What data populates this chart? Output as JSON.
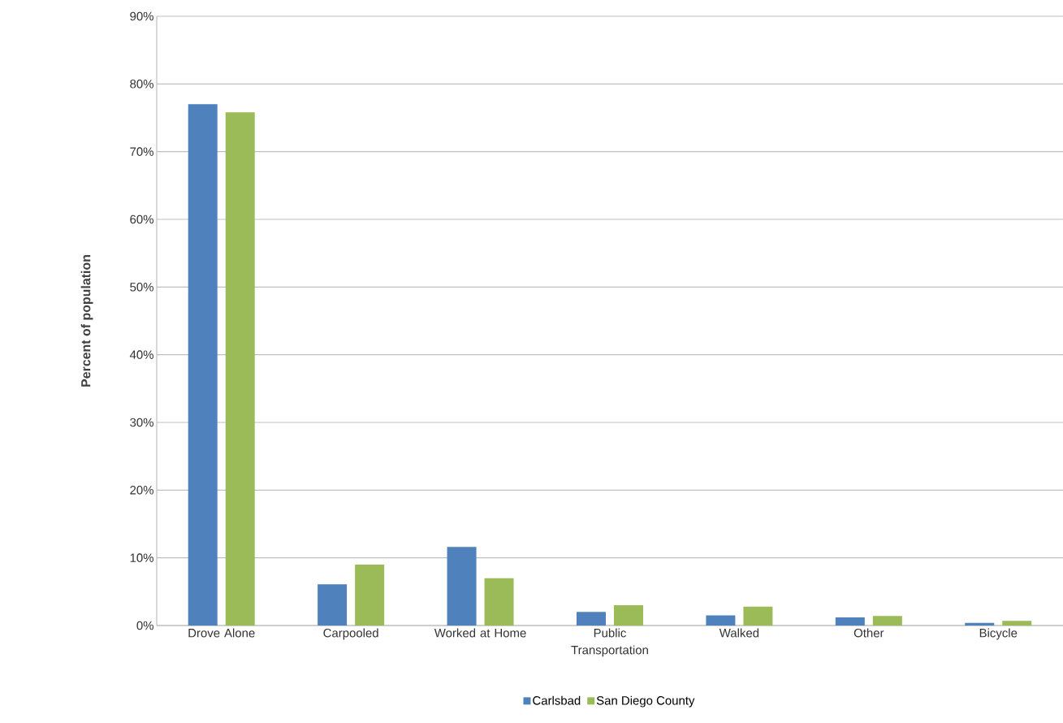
{
  "chart_data": {
    "type": "bar",
    "ylabel": "Percent of population",
    "categories": [
      "Drove Alone",
      "Carpooled",
      "Worked at Home",
      "Public Transportation",
      "Walked",
      "Other",
      "Bicycle"
    ],
    "series": [
      {
        "name": "Carlsbad",
        "color": "#4f81bd",
        "values": [
          77.0,
          6.1,
          11.6,
          2.0,
          1.5,
          1.2,
          0.4
        ]
      },
      {
        "name": "San Diego County",
        "color": "#9bbb59",
        "values": [
          75.8,
          9.0,
          7.0,
          3.0,
          2.8,
          1.4,
          0.7
        ]
      }
    ],
    "ylim": [
      0,
      90
    ],
    "yticks": [
      {
        "value": 0,
        "label": "0%"
      },
      {
        "value": 10,
        "label": "10%"
      },
      {
        "value": 20,
        "label": "20%"
      },
      {
        "value": 30,
        "label": "30%"
      },
      {
        "value": 40,
        "label": "40%"
      },
      {
        "value": 50,
        "label": "50%"
      },
      {
        "value": 60,
        "label": "60%"
      },
      {
        "value": 70,
        "label": "70%"
      },
      {
        "value": 80,
        "label": "80%"
      },
      {
        "value": 90,
        "label": "90%"
      }
    ],
    "grid": "y",
    "legend": "bottom"
  }
}
